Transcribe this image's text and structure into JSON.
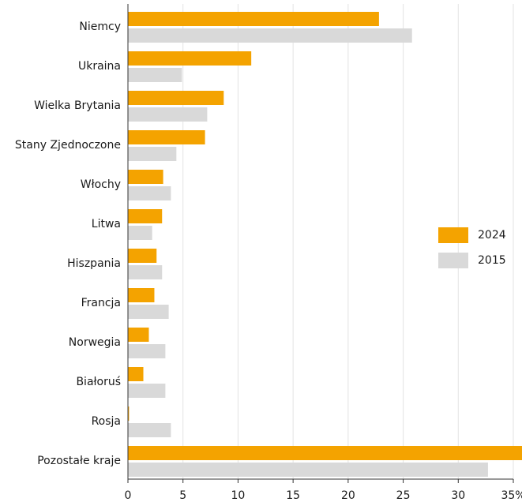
{
  "chart_data": {
    "type": "bar",
    "orientation": "horizontal",
    "categories": [
      "Niemcy",
      "Ukraina",
      "Wielka Brytania",
      "Stany Zjednoczone",
      "Włochy",
      "Litwa",
      "Hiszpania",
      "Francja",
      "Norwegia",
      "Białoruś",
      "Rosja",
      "Pozostałe kraje"
    ],
    "series": [
      {
        "name": "2024",
        "color": "#f4a300",
        "values": [
          22.8,
          11.2,
          8.7,
          7.0,
          3.2,
          3.1,
          2.6,
          2.4,
          1.9,
          1.4,
          0.1,
          36.2
        ]
      },
      {
        "name": "2015",
        "color": "#d9d9d9",
        "values": [
          25.8,
          4.9,
          7.2,
          4.4,
          3.9,
          2.2,
          3.1,
          3.7,
          3.4,
          3.4,
          3.9,
          32.7
        ]
      }
    ],
    "xlim": [
      0,
      35
    ],
    "xticks": [
      0,
      5,
      10,
      15,
      20,
      25,
      30,
      {
        "value": 35,
        "label": "35%"
      }
    ],
    "grid": true,
    "legend": "right"
  }
}
